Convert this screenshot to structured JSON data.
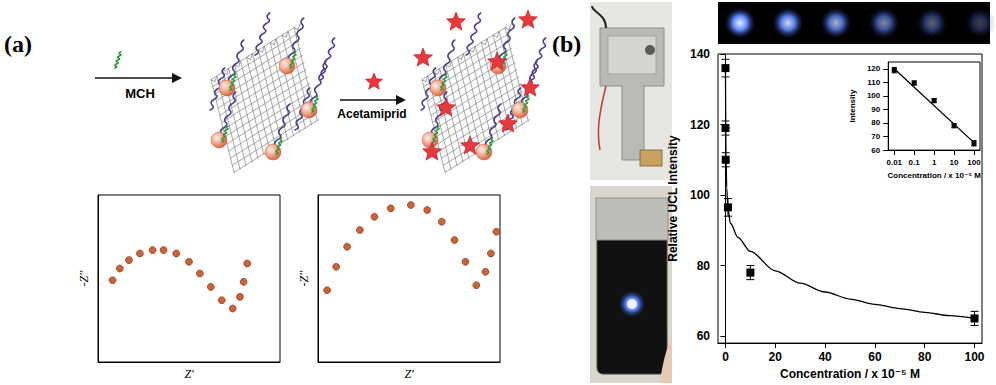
{
  "figure": {
    "panel_a": {
      "label": "(a)",
      "steps": [
        "MCH",
        "Acetamiprid"
      ]
    },
    "panel_b": {
      "label": "(b)"
    }
  },
  "chart_data": [
    {
      "type": "scatter",
      "x_label": "Z'",
      "y_label": "-Z''",
      "marker": "circle",
      "color": "#c8643c",
      "x": [
        0.8,
        1.2,
        1.7,
        2.3,
        3.0,
        3.6,
        4.3,
        5.0,
        5.6,
        6.2,
        6.8,
        7.4,
        7.8,
        8.0,
        8.2
      ],
      "values": [
        4.9,
        5.6,
        6.1,
        6.5,
        6.7,
        6.7,
        6.5,
        6.0,
        5.3,
        4.5,
        3.7,
        3.2,
        3.9,
        4.8,
        5.9
      ],
      "xlim": [
        0,
        10
      ],
      "ylim": [
        0,
        10
      ],
      "xticks": [],
      "yticks": [],
      "tick_labels": false,
      "grid": false
    },
    {
      "type": "scatter",
      "x_label": "Z'",
      "y_label": "-Z''",
      "marker": "circle",
      "color": "#c8643c",
      "x": [
        0.5,
        1.0,
        1.6,
        2.3,
        3.1,
        4.0,
        5.1,
        6.0,
        6.8,
        7.5,
        8.1,
        8.7,
        9.2,
        9.5,
        9.8
      ],
      "values": [
        4.3,
        5.7,
        6.9,
        7.9,
        8.7,
        9.2,
        9.4,
        9.1,
        8.4,
        7.3,
        6.0,
        4.6,
        5.4,
        6.5,
        7.8
      ],
      "xlim": [
        0,
        10
      ],
      "ylim": [
        0,
        10
      ],
      "xticks": [],
      "yticks": [],
      "tick_labels": false,
      "grid": false
    },
    {
      "type": "scatter",
      "x_label": "Concentration / x 10⁻⁵ M",
      "y_label": "Relative UCL Intensity",
      "xlim": [
        -3,
        103
      ],
      "ylim": [
        58,
        140
      ],
      "xticks": [
        0,
        20,
        40,
        60,
        80,
        100
      ],
      "yticks": [
        60,
        80,
        100,
        120,
        140
      ],
      "grid": false,
      "series": [
        {
          "type": "scatter",
          "marker": "square",
          "color": "#000000",
          "x": [
            0,
            0.01,
            0.1,
            1,
            10,
            100
          ],
          "values": [
            136,
            119,
            110,
            96.5,
            78,
            65
          ],
          "errors": [
            2.5,
            2,
            2,
            2.5,
            2,
            2
          ]
        },
        {
          "type": "line",
          "line_style": "solid",
          "color": "#000000",
          "x": [
            0,
            0.2,
            0.5,
            1,
            2,
            5,
            10,
            20,
            30,
            40,
            50,
            60,
            70,
            80,
            90,
            100
          ],
          "values": [
            136,
            112,
            102,
            96,
            92,
            88,
            84,
            78.5,
            75,
            72.5,
            70.5,
            69,
            67.8,
            66.7,
            65.8,
            65
          ]
        }
      ]
    },
    {
      "type": "scatter",
      "log": "x",
      "x_label": "Concentration / x 10⁻⁵ M",
      "y_label": "Intensity",
      "xlim": [
        0.005,
        200
      ],
      "ylim": [
        60,
        125
      ],
      "xticks": [
        0.01,
        0.1,
        1,
        10,
        100
      ],
      "yticks": [
        60,
        70,
        80,
        90,
        100,
        110,
        120
      ],
      "grid": false,
      "series": [
        {
          "type": "scatter",
          "marker": "square",
          "color": "#000000",
          "x": [
            0.01,
            0.1,
            1,
            10,
            100
          ],
          "values": [
            119,
            109.5,
            96.5,
            78,
            65
          ],
          "errors": [
            2,
            1.5,
            1.5,
            1.5,
            2
          ]
        },
        {
          "type": "line",
          "line_style": "solid",
          "color": "#000000",
          "x": [
            0.01,
            100
          ],
          "values": [
            120,
            65.5
          ]
        }
      ]
    }
  ]
}
